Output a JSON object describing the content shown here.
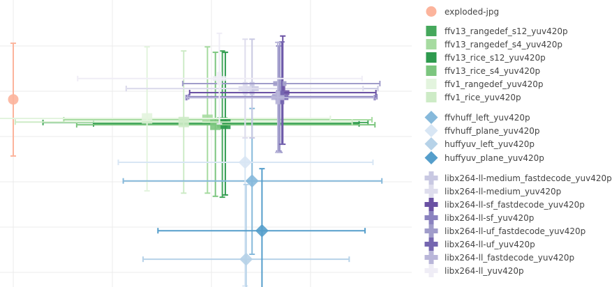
{
  "chart_data": {
    "type": "scatter",
    "title": "",
    "xlabel": "",
    "ylabel": "",
    "grid": true,
    "legend_placement": "right",
    "error_bars": true,
    "series": [
      {
        "name": "exploded-jpg",
        "group": 0,
        "symbol": "circle",
        "color": "#fcb49c",
        "x": 0,
        "y": 3.82,
        "x_range": null,
        "y_range": [
          2.57,
          5.06
        ]
      },
      {
        "name": "ffv13_rangedef_s12_yuv420p",
        "group": 1,
        "symbol": "square",
        "color": "#45a85c",
        "x": 2.11,
        "y": 3.31,
        "x_range": [
          0.3,
          3.58
        ],
        "y_range": [
          1.66,
          4.89
        ]
      },
      {
        "name": "ffv13_rangedef_s4_yuv420p",
        "group": 1,
        "symbol": "square",
        "color": "#a6dba0",
        "x": 1.96,
        "y": 3.37,
        "x_range": [
          0.51,
          3.62
        ],
        "y_range": [
          1.75,
          4.98
        ]
      },
      {
        "name": "ffv13_rice_s12_yuv420p",
        "group": 1,
        "symbol": "square",
        "color": "#2e9a4e",
        "x": 2.14,
        "y": 3.28,
        "x_range": [
          0.81,
          3.49
        ],
        "y_range": [
          1.71,
          4.86
        ]
      },
      {
        "name": "ffv13_rice_s4_yuv420p",
        "group": 1,
        "symbol": "square",
        "color": "#7cc67f",
        "x": 2.04,
        "y": 3.26,
        "x_range": [
          0.64,
          3.65
        ],
        "y_range": [
          1.68,
          4.86
        ]
      },
      {
        "name": "ffv1_rangedef_yuv420p",
        "group": 1,
        "symbol": "square",
        "color": "#e3f4de",
        "x": 1.35,
        "y": 3.4,
        "x_range": [
          -0.3,
          3.2
        ],
        "y_range": [
          1.8,
          4.98
        ]
      },
      {
        "name": "ffv1_rice_yuv420p",
        "group": 1,
        "symbol": "square",
        "color": "#cdebc6",
        "x": 1.72,
        "y": 3.32,
        "x_range": [
          0.02,
          3.42
        ],
        "y_range": [
          1.75,
          4.89
        ]
      },
      {
        "name": "ffvhuff_left_yuv420p",
        "group": 2,
        "symbol": "diamond",
        "color": "#86b9db",
        "x": 2.41,
        "y": 2.02,
        "x_range": [
          1.11,
          3.72
        ],
        "y_range": [
          0.4,
          3.62
        ]
      },
      {
        "name": "ffvhuff_plane_yuv420p",
        "group": 2,
        "symbol": "diamond",
        "color": "#d8e6f4",
        "x": 2.34,
        "y": 2.43,
        "x_range": [
          1.06,
          3.63
        ],
        "y_range": [
          -0.3,
          4.0
        ]
      },
      {
        "name": "huffyuv_left_yuv420p",
        "group": 2,
        "symbol": "diamond",
        "color": "#b6d2e8",
        "x": 2.35,
        "y": 0.29,
        "x_range": [
          1.31,
          3.39
        ],
        "y_range": [
          -0.5,
          1.94
        ]
      },
      {
        "name": "huffyuv_plane_yuv420p",
        "group": 2,
        "symbol": "diamond",
        "color": "#559ecb",
        "x": 2.51,
        "y": 0.92,
        "x_range": [
          1.46,
          3.55
        ],
        "y_range": [
          -0.45,
          2.29
        ]
      },
      {
        "name": "libx264-ll-medium_fastdecode_yuv420p",
        "group": 3,
        "symbol": "cross",
        "color": "#c8c8e2",
        "x": 2.41,
        "y": 4.06,
        "x_range": [
          1.14,
          3.68
        ],
        "y_range": [
          2.97,
          5.15
        ]
      },
      {
        "name": "libx264-ll-medium_yuv420p",
        "group": 3,
        "symbol": "cross",
        "color": "#dedded",
        "x": 2.34,
        "y": 4.06,
        "x_range": [
          1.14,
          3.53
        ],
        "y_range": [
          2.97,
          5.15
        ]
      },
      {
        "name": "libx264-ll-sf_fastdecode_yuv420p",
        "group": 3,
        "symbol": "cross",
        "color": "#6a51a3",
        "x": 2.72,
        "y": 3.97,
        "x_range": [
          1.78,
          3.66
        ],
        "y_range": [
          2.83,
          5.22
        ]
      },
      {
        "name": "libx264-ll-sf_yuv420p",
        "group": 3,
        "symbol": "cross",
        "color": "#8a82bf",
        "x": 2.68,
        "y": 3.88,
        "x_range": [
          1.77,
          3.67
        ],
        "y_range": [
          2.68,
          5.0
        ]
      },
      {
        "name": "libx264-ll-uf_fastdecode_yuv420p",
        "group": 3,
        "symbol": "cross",
        "color": "#a09cca",
        "x": 2.69,
        "y": 4.17,
        "x_range": [
          1.71,
          3.7
        ],
        "y_range": [
          2.65,
          5.08
        ]
      },
      {
        "name": "libx264-ll-uf_yuv420p",
        "group": 3,
        "symbol": "cross",
        "color": "#7566b0",
        "x": 2.71,
        "y": 3.86,
        "x_range": [
          1.75,
          3.65
        ],
        "y_range": [
          2.83,
          5.09
        ]
      },
      {
        "name": "libx264-ll_fastdecode_yuv420p",
        "group": 3,
        "symbol": "cross",
        "color": "#b9b6d9",
        "x": 2.67,
        "y": 3.86,
        "x_range": [
          1.74,
          3.64
        ],
        "y_range": [
          2.65,
          5.08
        ]
      },
      {
        "name": "libx264-ll_yuv420p",
        "group": 3,
        "symbol": "cross",
        "color": "#efedf6",
        "x": 2.08,
        "y": 4.28,
        "x_range": [
          0.65,
          3.52
        ],
        "y_range": [
          3.28,
          5.28
        ]
      }
    ]
  }
}
